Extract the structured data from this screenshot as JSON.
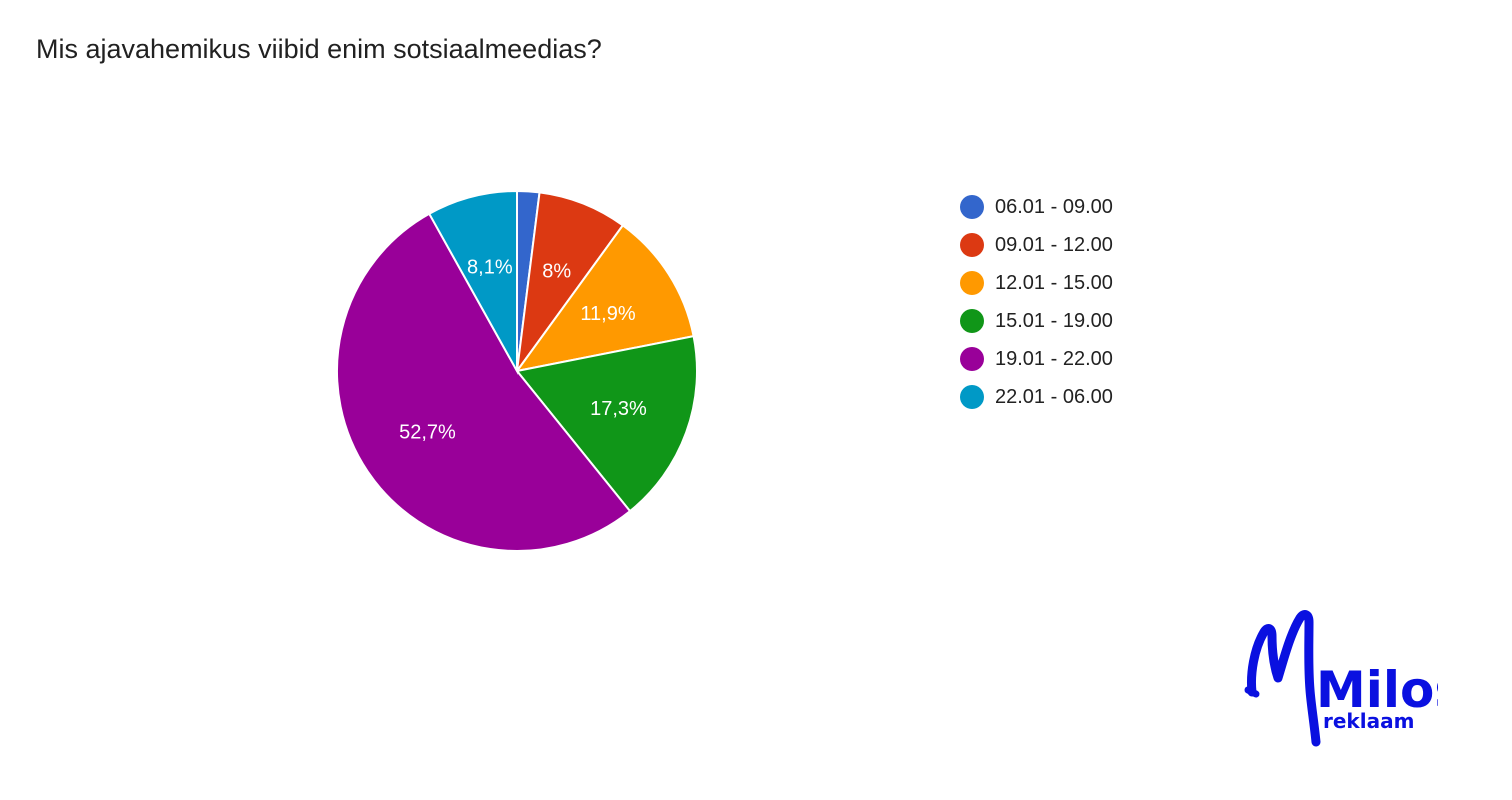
{
  "chart_data": {
    "type": "pie",
    "title": "Mis ajavahemikus viibid enim sotsiaalmeedias?",
    "categories": [
      "06.01 - 09.00",
      "09.01 - 12.00",
      "12.01 - 15.00",
      "15.01 - 19.00",
      "19.01 - 22.00",
      "22.01 - 06.00"
    ],
    "values": [
      2.0,
      8.0,
      11.9,
      17.3,
      52.7,
      8.1
    ],
    "data_labels": [
      "",
      "8%",
      "11,9%",
      "17,3%",
      "52,7%",
      "8,1%"
    ],
    "colors": [
      "#3366cc",
      "#dc3912",
      "#ff9900",
      "#109618",
      "#990099",
      "#0099c6"
    ],
    "unit": "%",
    "legend_position": "right",
    "start_angle_degrees": 90,
    "direction": "clockwise"
  },
  "branding": {
    "logo_word": "Milos",
    "logo_subword": "reklaam",
    "logo_color": "#0a10e0"
  }
}
